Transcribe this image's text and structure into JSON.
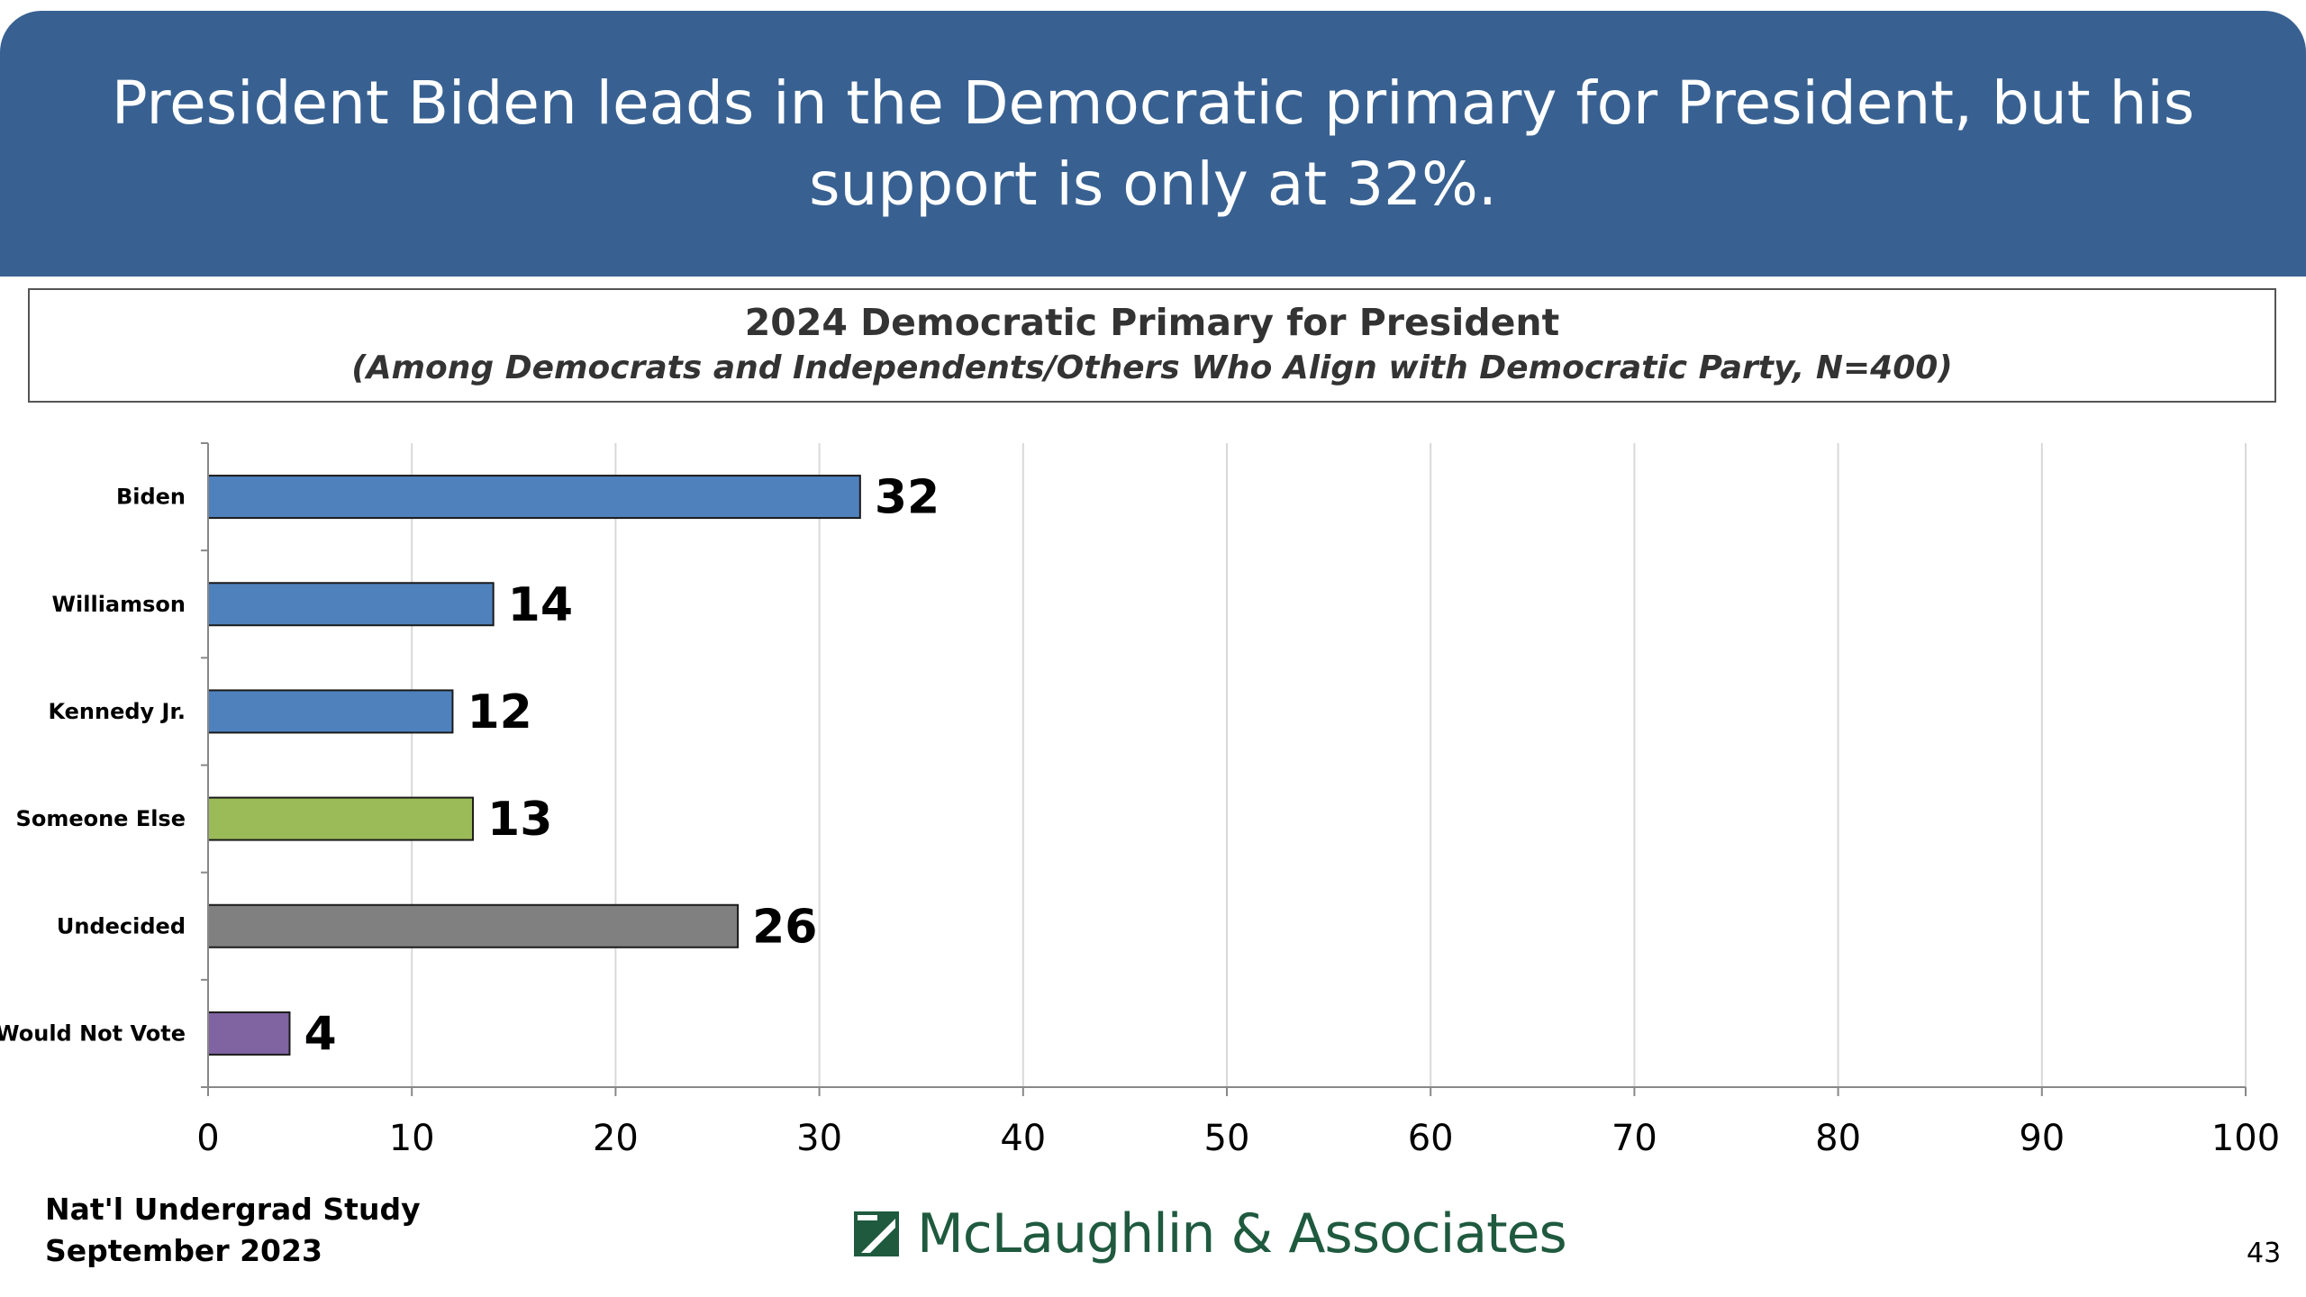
{
  "slide": {
    "title": "President Biden leads in the Democratic primary for President, but his support is only at 32%.",
    "footer_line1": "Nat'l Undergrad Study",
    "footer_line2": "September 2023",
    "logo_text": "McLaughlin & Associates",
    "logo_icon": "mclaughlin-logo-mark",
    "page_number": "43"
  },
  "chart_data": {
    "type": "bar",
    "orientation": "horizontal",
    "title": "2024 Democratic Primary for President",
    "subtitle": "(Among Democrats and Independents/Others Who Align with Democratic Party, N=400)",
    "categories": [
      "Biden",
      "Williamson",
      "Kennedy Jr.",
      "Someone Else",
      "Undecided",
      "Would Not Vote"
    ],
    "values": [
      32,
      14,
      12,
      13,
      26,
      4
    ],
    "colors": [
      "#4f81bd",
      "#4f81bd",
      "#4f81bd",
      "#9bbb59",
      "#808080",
      "#8064a2"
    ],
    "xlim": [
      0,
      100
    ],
    "xticks": [
      0,
      10,
      20,
      30,
      40,
      50,
      60,
      70,
      80,
      90,
      100
    ],
    "grid": "vertical",
    "data_labels": true,
    "legend": "none"
  },
  "colors": {
    "header_bg": "#386192",
    "header_text": "#ffffff",
    "gridline": "#d9d9d9",
    "logo_green": "#1f5a3f"
  }
}
